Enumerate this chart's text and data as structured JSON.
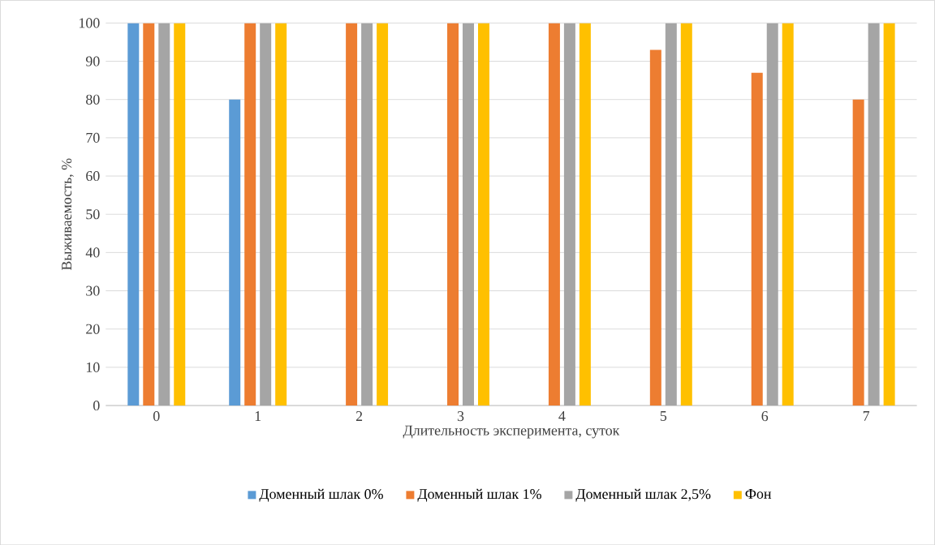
{
  "chart_data": {
    "type": "bar",
    "xlabel": "Длительность  эксперимента, суток",
    "ylabel": "Выживаемость, %",
    "categories": [
      "0",
      "1",
      "2",
      "3",
      "4",
      "5",
      "6",
      "7"
    ],
    "series": [
      {
        "name": "Доменный  шлак  0%",
        "color": "#5b9bd5",
        "values": [
          100,
          80,
          0,
          0,
          0,
          0,
          0,
          0
        ]
      },
      {
        "name": "Доменный  шлак  1%",
        "color": "#ed7d31",
        "values": [
          100,
          100,
          100,
          100,
          100,
          93,
          87,
          80
        ]
      },
      {
        "name": "Доменный  шлак  2,5%",
        "color": "#a5a5a5",
        "values": [
          100,
          100,
          100,
          100,
          100,
          100,
          100,
          100
        ]
      },
      {
        "name": "Фон",
        "color": "#ffc000",
        "values": [
          100,
          100,
          100,
          100,
          100,
          100,
          100,
          100
        ]
      }
    ],
    "ylim": [
      0,
      100
    ],
    "yticks": [
      0,
      10,
      20,
      30,
      40,
      50,
      60,
      70,
      80,
      90,
      100
    ],
    "grid": "y",
    "legend": "bottom"
  }
}
